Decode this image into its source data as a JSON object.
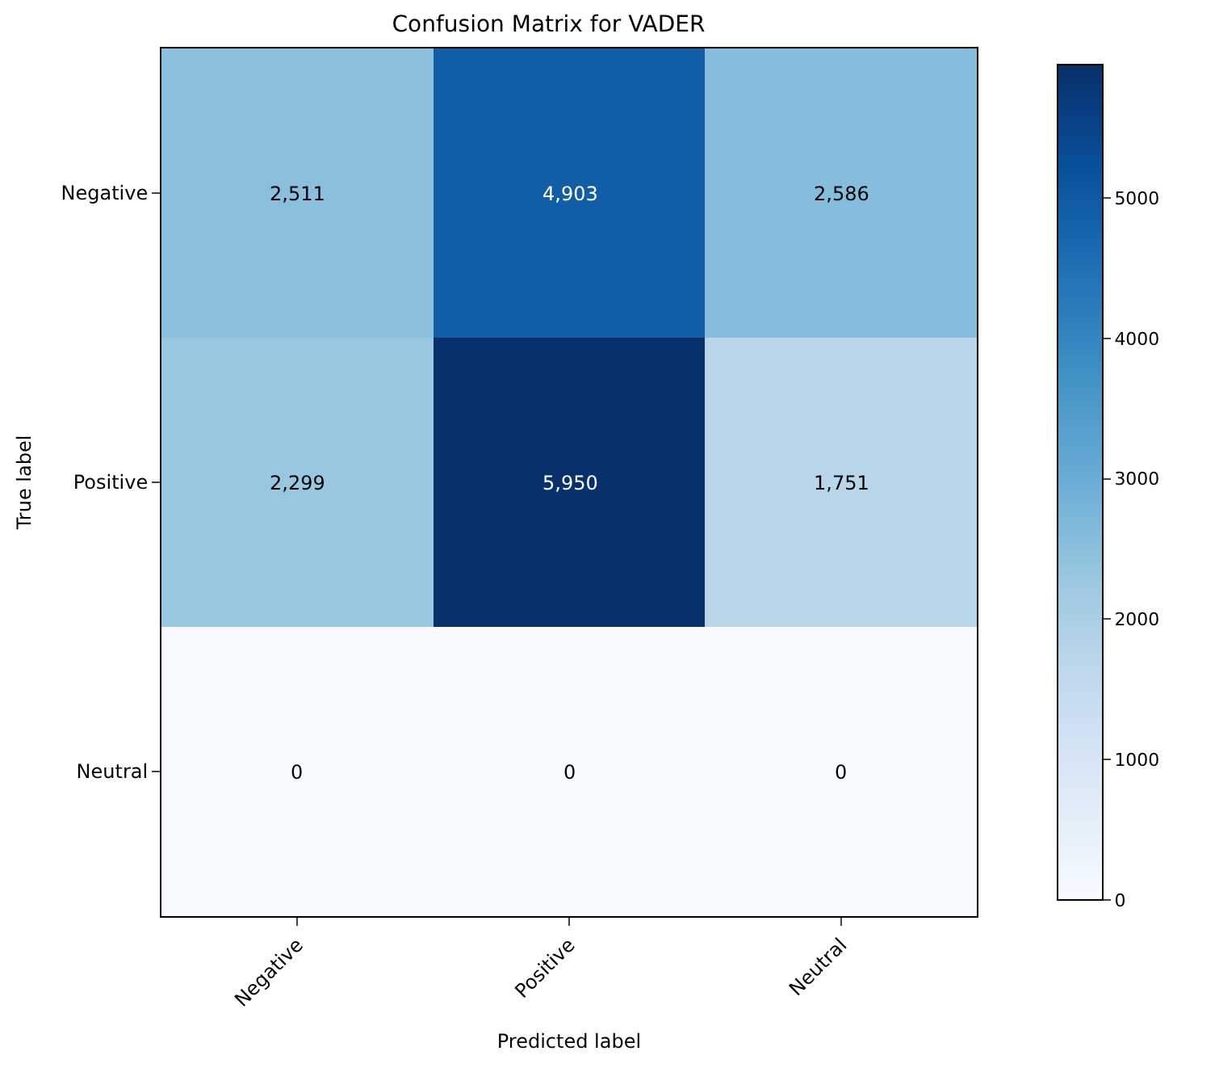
{
  "chart_data": {
    "type": "heatmap",
    "title": "Confusion Matrix for VADER",
    "xlabel": "Predicted label",
    "ylabel": "True label",
    "categories": [
      "Negative",
      "Positive",
      "Neutral"
    ],
    "y_categories": [
      "Negative",
      "Positive",
      "Neutral"
    ],
    "cells": [
      [
        2511,
        4903,
        2586
      ],
      [
        2299,
        5950,
        1751
      ],
      [
        0,
        0,
        0
      ]
    ],
    "cell_labels": [
      [
        "2,511",
        "4,903",
        "2,586"
      ],
      [
        "2,299",
        "5,950",
        "1,751"
      ],
      [
        "0",
        "0",
        "0"
      ]
    ],
    "clim": [
      0,
      5950
    ],
    "cticks": [
      0,
      1000,
      2000,
      3000,
      4000,
      5000
    ]
  }
}
